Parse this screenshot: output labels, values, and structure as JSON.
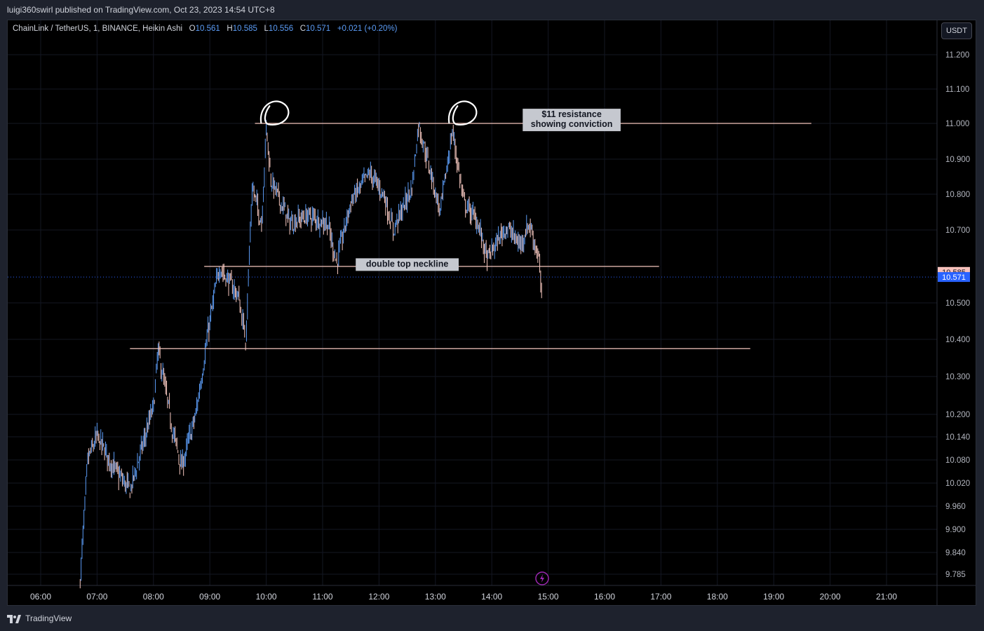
{
  "header": {
    "published_text": "luigi360swirl published on TradingView.com, Oct 23, 2023 14:54 UTC+8"
  },
  "legend": {
    "symbol": "ChainLink / TetherUS, 1, BINANCE, Heikin Ashi",
    "o_label": "O",
    "o_value": "10.561",
    "h_label": "H",
    "h_value": "10.585",
    "l_label": "L",
    "l_value": "10.556",
    "c_label": "C",
    "c_value": "10.571",
    "change": "+0.021 (+0.20%)"
  },
  "currency_button": "USDT",
  "footer": {
    "brand": "TradingView"
  },
  "colors": {
    "up": "#5b9cf6",
    "down": "#f7c9c0",
    "line": "#f3c5bd",
    "last_price": "#2962ff",
    "high_tag": "#f7c1bb",
    "annotation_bg": "#c5c8cf",
    "background": "#000000"
  },
  "chart_data": {
    "type": "candlestick",
    "style": "Heikin Ashi",
    "interval": "1 minute",
    "y_axis": {
      "ticks": [
        {
          "label": "11.200",
          "value": 11.2
        },
        {
          "label": "11.100",
          "value": 11.1
        },
        {
          "label": "11.000",
          "value": 11.0
        },
        {
          "label": "10.900",
          "value": 10.9
        },
        {
          "label": "10.800",
          "value": 10.8
        },
        {
          "label": "10.700",
          "value": 10.7
        },
        {
          "label": "10.500",
          "value": 10.5
        },
        {
          "label": "10.400",
          "value": 10.4
        },
        {
          "label": "10.300",
          "value": 10.3
        },
        {
          "label": "10.200",
          "value": 10.2
        },
        {
          "label": "10.140",
          "value": 10.14
        },
        {
          "label": "10.080",
          "value": 10.08
        },
        {
          "label": "10.020",
          "value": 10.02
        },
        {
          "label": "9.960",
          "value": 9.96
        },
        {
          "label": "9.900",
          "value": 9.9
        },
        {
          "label": "9.840",
          "value": 9.84
        },
        {
          "label": "9.785",
          "value": 9.785
        }
      ]
    },
    "x_axis": {
      "ticks": [
        "06:00",
        "07:00",
        "08:00",
        "09:00",
        "10:00",
        "11:00",
        "12:00",
        "13:00",
        "14:00",
        "15:00",
        "16:00",
        "17:00",
        "18:00",
        "19:00",
        "20:00",
        "21:00"
      ]
    },
    "price_path": [
      {
        "t": "06:42",
        "v": 9.77
      },
      {
        "t": "06:50",
        "v": 10.08
      },
      {
        "t": "07:00",
        "v": 10.14
      },
      {
        "t": "07:20",
        "v": 10.05
      },
      {
        "t": "07:35",
        "v": 10.0
      },
      {
        "t": "08:00",
        "v": 10.22
      },
      {
        "t": "08:05",
        "v": 10.37
      },
      {
        "t": "08:20",
        "v": 10.16
      },
      {
        "t": "08:30",
        "v": 10.06
      },
      {
        "t": "08:45",
        "v": 10.2
      },
      {
        "t": "09:00",
        "v": 10.45
      },
      {
        "t": "09:10",
        "v": 10.6
      },
      {
        "t": "09:30",
        "v": 10.52
      },
      {
        "t": "09:38",
        "v": 10.4
      },
      {
        "t": "09:45",
        "v": 10.82
      },
      {
        "t": "09:55",
        "v": 10.72
      },
      {
        "t": "10:00",
        "v": 10.99
      },
      {
        "t": "10:05",
        "v": 10.84
      },
      {
        "t": "10:25",
        "v": 10.72
      },
      {
        "t": "10:45",
        "v": 10.74
      },
      {
        "t": "11:05",
        "v": 10.72
      },
      {
        "t": "11:15",
        "v": 10.61
      },
      {
        "t": "11:30",
        "v": 10.78
      },
      {
        "t": "11:50",
        "v": 10.86
      },
      {
        "t": "12:05",
        "v": 10.8
      },
      {
        "t": "12:15",
        "v": 10.7
      },
      {
        "t": "12:35",
        "v": 10.82
      },
      {
        "t": "12:42",
        "v": 11.0
      },
      {
        "t": "12:55",
        "v": 10.86
      },
      {
        "t": "13:05",
        "v": 10.75
      },
      {
        "t": "13:18",
        "v": 10.98
      },
      {
        "t": "13:30",
        "v": 10.78
      },
      {
        "t": "13:45",
        "v": 10.72
      },
      {
        "t": "13:55",
        "v": 10.62
      },
      {
        "t": "14:15",
        "v": 10.71
      },
      {
        "t": "14:30",
        "v": 10.66
      },
      {
        "t": "14:40",
        "v": 10.72
      },
      {
        "t": "14:50",
        "v": 10.62
      },
      {
        "t": "14:53",
        "v": 10.51
      },
      {
        "t": "14:54",
        "v": 10.571
      }
    ],
    "lines": [
      {
        "name": "resistance",
        "price": 11.0,
        "from": "09:48",
        "to": "19:40"
      },
      {
        "name": "neckline",
        "price": 10.6,
        "from": "08:54",
        "to": "16:58"
      },
      {
        "name": "support",
        "price": 10.375,
        "from": "07:35",
        "to": "18:35"
      }
    ],
    "annotations": [
      {
        "lines": [
          "$11 resistance",
          "showing conviction"
        ],
        "at_time": "15:25",
        "price": 11.01
      },
      {
        "lines": [
          "double top neckline"
        ],
        "at_time": "12:30",
        "price": 10.605
      }
    ],
    "tops": [
      {
        "time": "10:08",
        "price": 11.03
      },
      {
        "time": "13:28",
        "price": 11.03
      }
    ],
    "price_tags": [
      {
        "label": "10.585",
        "value": 10.585,
        "kind": "high"
      },
      {
        "label": "10.571",
        "value": 10.571,
        "kind": "last"
      }
    ]
  }
}
